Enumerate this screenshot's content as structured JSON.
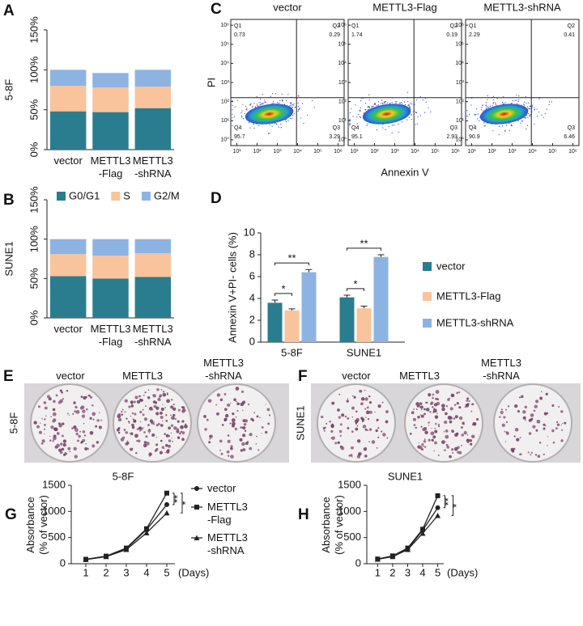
{
  "chart_data": [
    {
      "panel": "A",
      "type": "stacked_bar",
      "ylabel": "5-8F",
      "categories": [
        "vector",
        "METTL3\n-Flag",
        "METTL3\n-shRNA"
      ],
      "series": [
        {
          "color": "#2a7d8e",
          "values": [
            48,
            47,
            52
          ]
        },
        {
          "color": "#f9c39b",
          "values": [
            32,
            31,
            27
          ]
        },
        {
          "color": "#8db3e2",
          "values": [
            20,
            18,
            21
          ]
        }
      ],
      "ylim": [
        0,
        150
      ],
      "yticks": [
        {
          "value": 0,
          "label": "0%"
        },
        {
          "value": 50,
          "label": "50%"
        },
        {
          "value": 100,
          "label": "100%"
        },
        {
          "value": 150,
          "label": "150%"
        }
      ]
    },
    {
      "panel": "B",
      "type": "stacked_bar",
      "ylabel": "SUNE1",
      "categories": [
        "vector",
        "METTL3\n-Flag",
        "METTL3\n-shRNA"
      ],
      "series": [
        {
          "name": "G0/G1",
          "color": "#2a7d8e",
          "values": [
            53,
            50,
            52
          ]
        },
        {
          "name": "S",
          "color": "#f9c39b",
          "values": [
            28,
            29,
            30
          ]
        },
        {
          "name": "G2/M",
          "color": "#8db3e2",
          "values": [
            19,
            21,
            18
          ]
        }
      ],
      "ylim": [
        0,
        150
      ],
      "yticks": [
        {
          "value": 0,
          "label": "0%"
        },
        {
          "value": 50,
          "label": "50%"
        },
        {
          "value": 100,
          "label": "100%"
        },
        {
          "value": 150,
          "label": "150%"
        }
      ],
      "legend": "top"
    },
    {
      "panel": "C",
      "type": "flow_cytometry",
      "xlabel": "Annexin V",
      "ylabel": "PI",
      "log": true,
      "xlim": [
        5,
        2000000
      ],
      "ylim": [
        0.5,
        2000000
      ],
      "xticks": [
        {
          "value": 10,
          "label": "10¹"
        },
        {
          "value": 100,
          "label": "10²"
        },
        {
          "value": 1000,
          "label": "10³"
        },
        {
          "value": 10000,
          "label": "10⁴"
        },
        {
          "value": 100000,
          "label": "10⁵"
        },
        {
          "value": 1000000,
          "label": "10⁶"
        }
      ],
      "yticks": [
        {
          "value": 1,
          "label": "10⁰"
        },
        {
          "value": 10,
          "label": "10¹"
        },
        {
          "value": 100,
          "label": "10²"
        },
        {
          "value": 1000,
          "label": "10³"
        },
        {
          "value": 10000,
          "label": "10⁴"
        },
        {
          "value": 100000,
          "label": "10⁵"
        },
        {
          "value": 1000000,
          "label": "10⁶"
        }
      ],
      "plots": [
        {
          "title": "vector",
          "quadrants": [
            {
              "name": "Q1",
              "value": 0.73
            },
            {
              "name": "Q2",
              "value": 0.29
            },
            {
              "name": "Q3",
              "value": 3.29
            },
            {
              "name": "Q4",
              "value": 95.7
            }
          ]
        },
        {
          "title": "METTL3-Flag",
          "quadrants": [
            {
              "name": "Q1",
              "value": 1.74
            },
            {
              "name": "Q2",
              "value": 0.19
            },
            {
              "name": "Q3",
              "value": 2.93
            },
            {
              "name": "Q4",
              "value": 95.1
            }
          ]
        },
        {
          "title": "METTL3-shRNA",
          "quadrants": [
            {
              "name": "Q1",
              "value": 2.29
            },
            {
              "name": "Q2",
              "value": 0.41
            },
            {
              "name": "Q3",
              "value": 6.46
            },
            {
              "name": "Q4",
              "value": 90.9
            }
          ]
        }
      ]
    },
    {
      "panel": "D",
      "type": "bar",
      "ylabel": "Annexin V+PI- cells (%)",
      "categories": [
        "5-8F",
        "SUNE1"
      ],
      "series": [
        {
          "name": "vector",
          "color": "#2a7d8e",
          "values": [
            3.6,
            4.1
          ],
          "errors": [
            0.25,
            0.2
          ]
        },
        {
          "name": "METTL3-Flag",
          "color": "#f9c39b",
          "values": [
            2.9,
            3.1
          ],
          "errors": [
            0.15,
            0.2
          ]
        },
        {
          "name": "METTL3-shRNA",
          "color": "#8db3e2",
          "values": [
            6.4,
            7.8
          ],
          "errors": [
            0.25,
            0.2
          ]
        }
      ],
      "significance": [
        [
          "*",
          "**"
        ],
        [
          "*",
          "**"
        ]
      ],
      "ylim": [
        0,
        10
      ],
      "yticks": [
        0,
        2,
        4,
        6,
        8,
        10
      ],
      "legend": "right"
    },
    {
      "panel": "G",
      "type": "line",
      "title": "5-8F",
      "xlabel": "(Days)",
      "ylabel": "Absorbance\n(% of vector)",
      "x": [
        1,
        2,
        3,
        4,
        5
      ],
      "xlim": [
        0.28,
        5.4
      ],
      "xticks": [
        1,
        2,
        3,
        4,
        5
      ],
      "ylim": [
        0,
        1500
      ],
      "yticks": [
        0,
        500,
        1000,
        1500
      ],
      "series": [
        {
          "name": "vector",
          "marker": "circle",
          "color": "#222222",
          "values": [
            80,
            140,
            290,
            650,
            1130
          ]
        },
        {
          "name": "METTL3\n-Flag",
          "marker": "square",
          "color": "#222222",
          "values": [
            85,
            145,
            300,
            670,
            1350
          ]
        },
        {
          "name": "METTL3\n-shRNA",
          "marker": "triangle",
          "color": "#222222",
          "values": [
            80,
            135,
            270,
            590,
            970
          ]
        }
      ],
      "significance": [
        "**",
        "*"
      ],
      "legend": "right"
    },
    {
      "panel": "H",
      "type": "line",
      "title": "SUNE1",
      "xlabel": "(Days)",
      "ylabel": "Absorbance\n(% of vector)",
      "x": [
        1,
        2,
        3,
        4,
        5
      ],
      "xlim": [
        0.28,
        5.4
      ],
      "xticks": [
        1,
        2,
        3,
        4,
        5
      ],
      "ylim": [
        0,
        1500
      ],
      "yticks": [
        0,
        500,
        1000,
        1500
      ],
      "series": [
        {
          "marker": "circle",
          "color": "#222222",
          "values": [
            85,
            140,
            285,
            640,
            1070
          ]
        },
        {
          "marker": "square",
          "color": "#222222",
          "values": [
            90,
            150,
            300,
            660,
            1300
          ]
        },
        {
          "marker": "triangle",
          "color": "#222222",
          "values": [
            85,
            135,
            270,
            580,
            920
          ]
        }
      ],
      "significance": [
        "**",
        "*"
      ]
    }
  ],
  "colony_assays": [
    {
      "panel": "E",
      "cell_line": "5-8F",
      "labels": [
        "vector",
        "METTL3",
        "METTL3\n-shRNA"
      ]
    },
    {
      "panel": "F",
      "cell_line": "SUNE1",
      "labels": [
        "vector",
        "METTL3",
        "METTL3\n-shRNA"
      ]
    }
  ]
}
